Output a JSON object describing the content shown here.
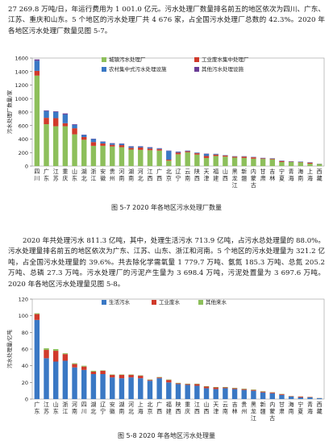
{
  "para1": "27 269.8 万吨/日，年运行费用为 1 001.0 亿元。污水处理厂数量排名前五的地区依次为四川、广东、江苏、重庆和山东。5 个地区的污水处理厂共 4 676 家，占全国污水处理厂总数的 42.3%。2020 年各地区污水处理厂数量见图 5-7。",
  "para2": "2020 年共处理污水 811.3 亿吨，其中，处理生活污水 713.9 亿吨，占污水总处理量的 88.0%。污水处理量排名前五的地区依次为广东、江苏、山东、浙江和河南。5 个地区的污水处理量为 321.2 亿吨，占全国污水处理量的 39.6%。共去除化学需氧量 1 779.7 万吨、氨氮 185.3 万吨、总氮 205.2 万吨、总磷 27.3 万吨。污水处理厂的污泥产生量为 3 698.4 万吨，污泥处置量为 3 697.6 万吨。2020 年各地区污水处理量见图 5-8。",
  "captions": {
    "fig1": "图 5-7   2020 年各地区污水处理厂数量",
    "fig2": "图 5-8   2020 年各地区污水处理量"
  },
  "colors": {
    "urban": "#8dbf5b",
    "industrial": "#d03a2b",
    "rural": "#3a78c4",
    "other": "#6a3d96",
    "domestic": "#3a78c4",
    "industrial_ww": "#d03a2b",
    "other_ww": "#8dbf5b"
  },
  "chart_data": [
    {
      "type": "bar",
      "stacked": true,
      "ylabel": "污水处理厂数量/家",
      "ylim": [
        0,
        1600
      ],
      "yticks": [
        0,
        200,
        400,
        600,
        800,
        1000,
        1200,
        1400,
        1600
      ],
      "categories": [
        "四川",
        "广东",
        "江苏",
        "重庆",
        "山东",
        "湖北",
        "浙江",
        "安徽",
        "贵州",
        "河南",
        "湖南",
        "河北",
        "江西",
        "广西",
        "北京",
        "辽宁",
        "云南",
        "陕西",
        "天津",
        "福建",
        "山西",
        "黑龙江",
        "新疆",
        "内蒙古",
        "甘肃",
        "吉林",
        "宁夏",
        "青海",
        "海南",
        "上海",
        "西藏"
      ],
      "legend": [
        "城镇污水处理厂",
        "工业废水集中处理厂",
        "农村集中式污水处理设施",
        "其他污水处理设施"
      ],
      "series": [
        {
          "name": "城镇污水处理厂",
          "values": [
            1340,
            620,
            590,
            590,
            470,
            390,
            300,
            300,
            290,
            280,
            245,
            240,
            235,
            230,
            80,
            175,
            205,
            170,
            120,
            150,
            140,
            125,
            120,
            110,
            105,
            100,
            60,
            60,
            55,
            35,
            30
          ]
        },
        {
          "name": "工业废水集中处理厂",
          "values": [
            70,
            95,
            120,
            45,
            90,
            40,
            55,
            35,
            25,
            30,
            25,
            35,
            25,
            20,
            15,
            25,
            15,
            20,
            30,
            20,
            15,
            15,
            20,
            20,
            10,
            10,
            15,
            5,
            5,
            15,
            2
          ]
        },
        {
          "name": "农村集中式污水处理设施",
          "values": [
            150,
            100,
            90,
            130,
            50,
            30,
            45,
            25,
            20,
            20,
            20,
            15,
            15,
            10,
            130,
            10,
            8,
            8,
            30,
            10,
            5,
            5,
            5,
            5,
            5,
            5,
            5,
            5,
            5,
            5,
            2
          ]
        },
        {
          "name": "其他污水处理设施",
          "values": [
            20,
            10,
            10,
            15,
            10,
            5,
            5,
            5,
            5,
            5,
            5,
            5,
            5,
            5,
            5,
            5,
            2,
            2,
            5,
            2,
            2,
            2,
            2,
            2,
            2,
            2,
            2,
            2,
            2,
            2,
            1
          ]
        }
      ]
    },
    {
      "type": "bar",
      "stacked": true,
      "ylabel": "污水处理量/亿吨",
      "ylim": [
        0,
        120
      ],
      "yticks": [
        0,
        20,
        40,
        60,
        80,
        100,
        120
      ],
      "categories": [
        "广东",
        "江苏",
        "山东",
        "浙江",
        "河南",
        "四川",
        "湖北",
        "辽宁",
        "安徽",
        "湖南",
        "河北",
        "上海",
        "北京",
        "广西",
        "福建",
        "陕西",
        "重庆",
        "江西",
        "山西",
        "天津",
        "云南",
        "吉林",
        "贵州",
        "黑龙江",
        "新疆",
        "内蒙古",
        "甘肃",
        "海南",
        "宁夏",
        "青海",
        "西藏"
      ],
      "legend": [
        "生活污水",
        "工业废水",
        "其他来水"
      ],
      "series": [
        {
          "name": "生活污水",
          "values": [
            95,
            49,
            45,
            46,
            38,
            35,
            30,
            30,
            26,
            25,
            26,
            25,
            22,
            25,
            20,
            18,
            17,
            16,
            13,
            12,
            13,
            12,
            11,
            10,
            8,
            7,
            5,
            3,
            2,
            2,
            1
          ]
        },
        {
          "name": "工业废水",
          "values": [
            7,
            10,
            13,
            8,
            4,
            4,
            3,
            4,
            3,
            4,
            3,
            3,
            1,
            1,
            3,
            1,
            1,
            2,
            2,
            2,
            1,
            1,
            1,
            1,
            1,
            1,
            1,
            0.5,
            1,
            0.5,
            0.2
          ]
        },
        {
          "name": "其他来水",
          "values": [
            1,
            2,
            2,
            1,
            1,
            1,
            1,
            0.5,
            0.5,
            0.5,
            0.5,
            0.5,
            0.5,
            0.5,
            0.5,
            0.5,
            0.5,
            0.5,
            0.5,
            0.5,
            0.5,
            0.5,
            0.5,
            0.5,
            0.5,
            0.3,
            0.3,
            0.2,
            0.2,
            0.2,
            0.1
          ]
        }
      ]
    }
  ]
}
